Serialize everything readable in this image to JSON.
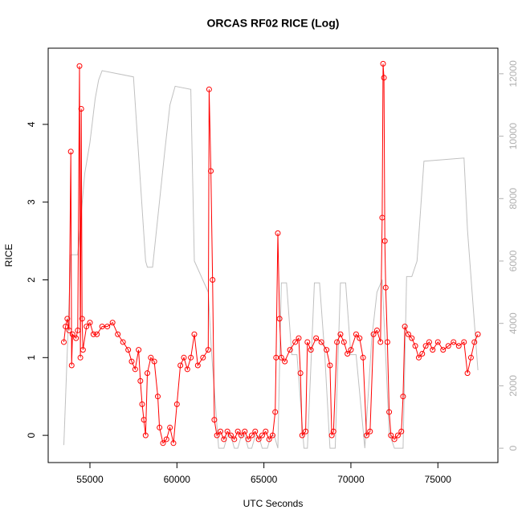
{
  "chart_data": {
    "type": "line",
    "title": "ORCAS RF02 RICE (Log)",
    "x_label": "UTC Seconds",
    "y_label": "RICE",
    "xlim": [
      52600,
      78450
    ],
    "ylim": [
      -0.35,
      4.98
    ],
    "y2lim": [
      -460,
      12820
    ],
    "xticks": [
      55000,
      60000,
      65000,
      70000,
      75000
    ],
    "yticks": [
      0,
      1,
      2,
      3,
      4
    ],
    "y2ticks": [
      0,
      2000,
      4000,
      6000,
      8000,
      10000,
      12000
    ],
    "series": [
      {
        "color": "#ff0000",
        "markers": true,
        "x": [
          53500,
          53600,
          53700,
          53800,
          53900,
          53950,
          54000,
          54200,
          54300,
          54400,
          54450,
          54500,
          54550,
          54600,
          54800,
          55000,
          55200,
          55400,
          55700,
          56000,
          56300,
          56600,
          56900,
          57200,
          57400,
          57600,
          57800,
          57900,
          58000,
          58100,
          58200,
          58300,
          58500,
          58700,
          58900,
          59000,
          59200,
          59400,
          59600,
          59800,
          60000,
          60200,
          60400,
          60600,
          60800,
          61000,
          61200,
          61500,
          61800,
          61850,
          61950,
          62050,
          62150,
          62300,
          62500,
          62700,
          62900,
          63100,
          63300,
          63500,
          63700,
          63900,
          64100,
          64300,
          64500,
          64700,
          64900,
          65100,
          65300,
          65500,
          65650,
          65700,
          65800,
          65900,
          66000,
          66200,
          66500,
          66800,
          67000,
          67100,
          67200,
          67400,
          67500,
          67700,
          68000,
          68300,
          68600,
          68800,
          68900,
          69000,
          69200,
          69400,
          69600,
          69800,
          70000,
          70300,
          70500,
          70700,
          70900,
          71100,
          71300,
          71500,
          71700,
          71800,
          71850,
          71900,
          71950,
          72000,
          72100,
          72200,
          72300,
          72500,
          72700,
          72900,
          73000,
          73100,
          73300,
          73500,
          73700,
          73900,
          74100,
          74300,
          74500,
          74700,
          75000,
          75300,
          75600,
          75900,
          76200,
          76500,
          76700,
          76900,
          77100,
          77300
        ],
        "values": [
          1.2,
          1.4,
          1.5,
          1.35,
          3.65,
          0.9,
          1.3,
          1.25,
          1.35,
          4.75,
          1.0,
          4.2,
          1.5,
          1.1,
          1.4,
          1.45,
          1.3,
          1.3,
          1.4,
          1.4,
          1.45,
          1.3,
          1.2,
          1.1,
          0.95,
          0.85,
          1.1,
          0.7,
          0.4,
          0.2,
          0.0,
          0.8,
          1.0,
          0.95,
          0.5,
          0.1,
          -0.1,
          -0.05,
          0.1,
          -0.1,
          0.4,
          0.9,
          1.0,
          0.85,
          1.0,
          1.3,
          0.9,
          1.0,
          1.1,
          4.45,
          3.4,
          2.0,
          0.2,
          0.0,
          0.05,
          -0.05,
          0.05,
          0.0,
          -0.05,
          0.05,
          0.0,
          0.05,
          -0.05,
          0.0,
          0.05,
          -0.05,
          0.0,
          0.05,
          -0.05,
          0.0,
          0.3,
          1.0,
          2.6,
          1.5,
          1.0,
          0.95,
          1.1,
          1.2,
          1.25,
          0.8,
          0.0,
          0.05,
          1.2,
          1.1,
          1.25,
          1.2,
          1.1,
          0.9,
          0.0,
          0.05,
          1.2,
          1.3,
          1.2,
          1.05,
          1.1,
          1.3,
          1.25,
          1.0,
          0.0,
          0.05,
          1.3,
          1.35,
          1.2,
          2.8,
          4.78,
          4.6,
          2.5,
          1.9,
          1.2,
          0.3,
          0.0,
          -0.05,
          0.0,
          0.05,
          0.5,
          1.4,
          1.3,
          1.25,
          1.15,
          1.0,
          1.05,
          1.15,
          1.2,
          1.1,
          1.2,
          1.1,
          1.15,
          1.2,
          1.15,
          1.2,
          0.8,
          1.0,
          1.2,
          1.3
        ]
      },
      {
        "color": "#c0c0c0",
        "axis": "y2",
        "markers": false,
        "x": [
          53500,
          53900,
          54300,
          54700,
          55000,
          55300,
          55500,
          55700,
          57500,
          58200,
          58300,
          58600,
          59300,
          59600,
          59900,
          60800,
          61000,
          61800,
          62000,
          62400,
          62700,
          62900,
          63100,
          63300,
          63500,
          63700,
          63900,
          64100,
          64300,
          64500,
          64700,
          64900,
          65200,
          65400,
          65600,
          65800,
          66000,
          66300,
          66600,
          66900,
          67300,
          67500,
          67900,
          68200,
          68500,
          68800,
          69100,
          69400,
          69700,
          70000,
          70300,
          70800,
          71200,
          71500,
          71800,
          72200,
          72500,
          73000,
          73200,
          73500,
          73800,
          74200,
          76500,
          76700,
          77300
        ],
        "values": [
          100,
          6200,
          6200,
          8800,
          9800,
          11200,
          11800,
          12100,
          11900,
          6000,
          5800,
          5800,
          9500,
          11000,
          11600,
          11500,
          6000,
          5000,
          3000,
          0,
          0,
          400,
          400,
          0,
          0,
          400,
          400,
          0,
          0,
          400,
          400,
          0,
          0,
          400,
          400,
          0,
          5300,
          5300,
          3000,
          3000,
          0,
          0,
          5300,
          5300,
          3000,
          0,
          0,
          5300,
          5300,
          3000,
          3000,
          0,
          3500,
          5000,
          5400,
          500,
          0,
          0,
          5500,
          5500,
          6000,
          9200,
          9300,
          7000,
          2500
        ]
      }
    ]
  }
}
